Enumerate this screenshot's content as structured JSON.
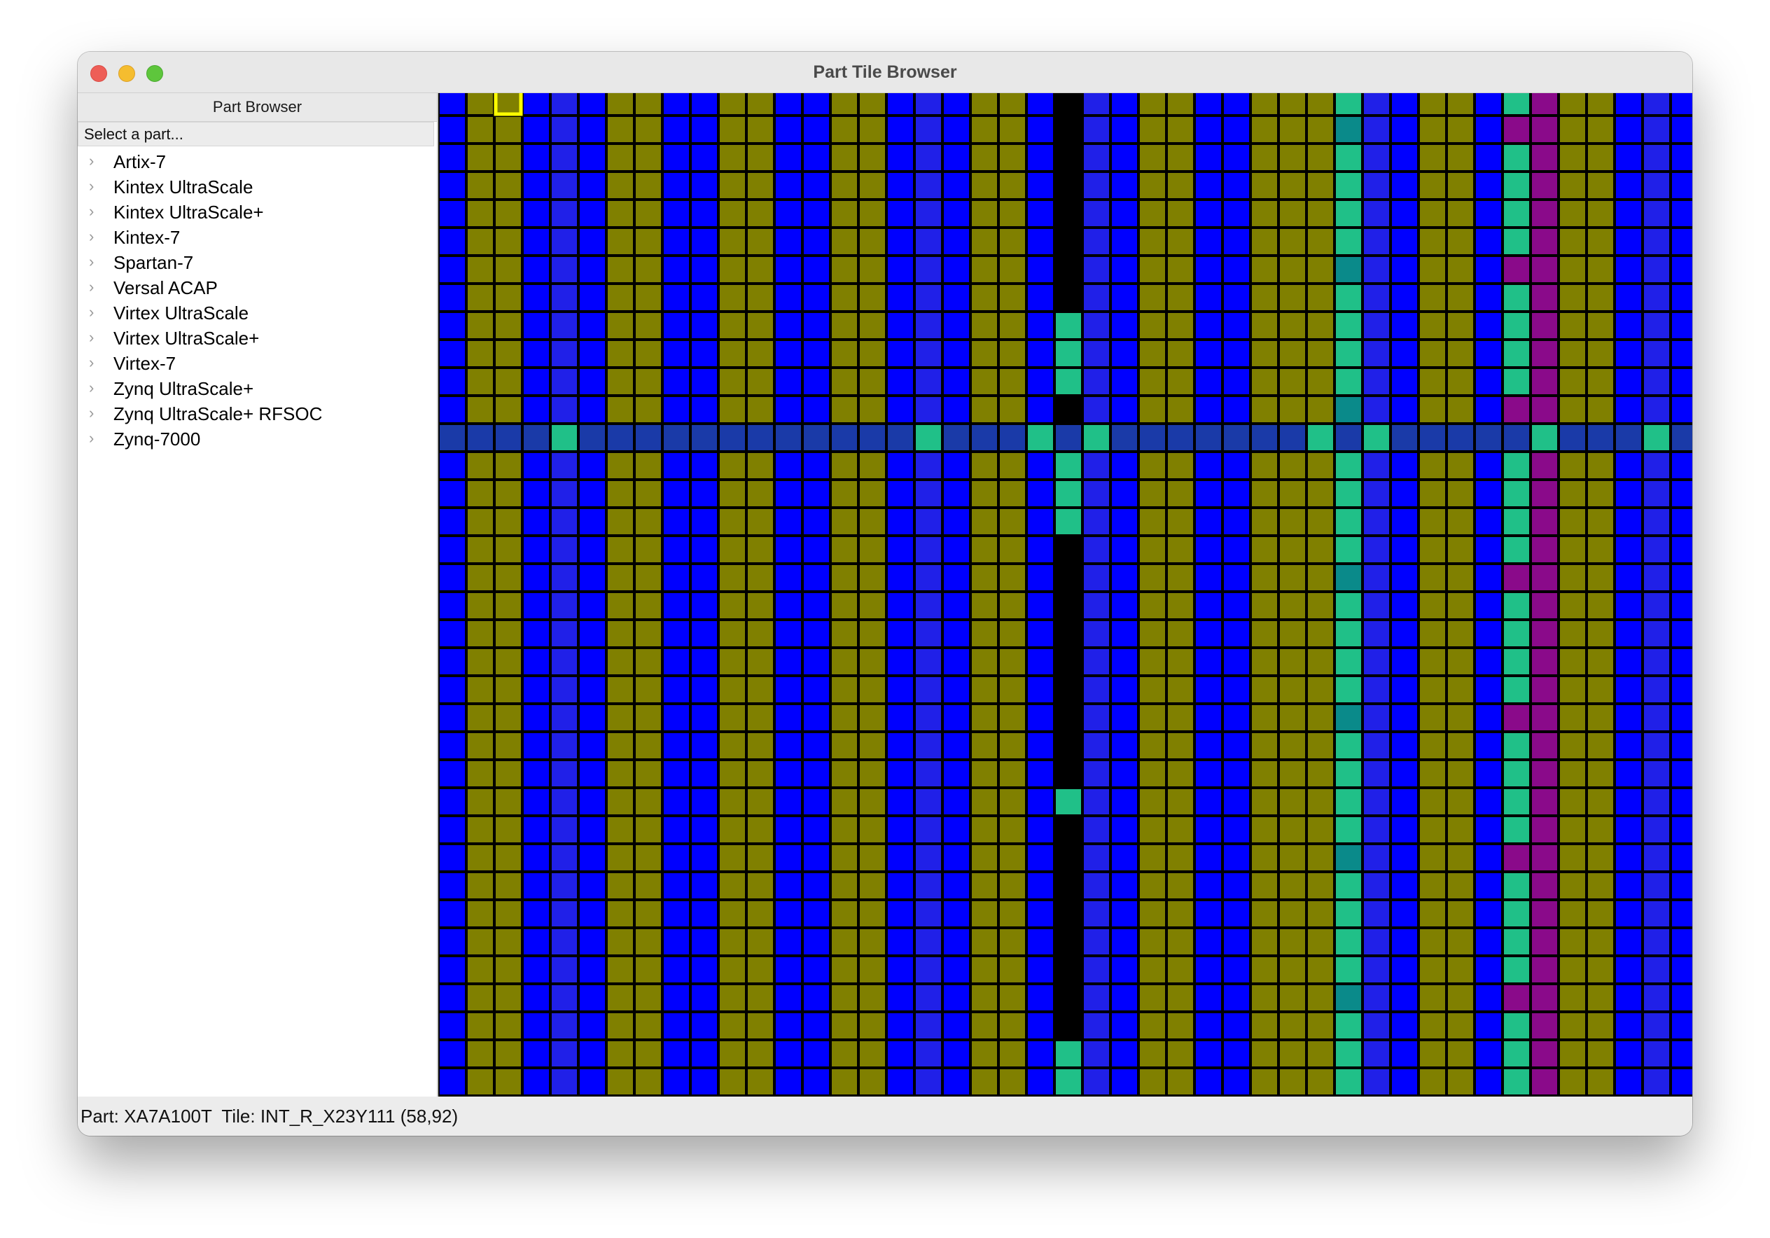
{
  "window": {
    "title": "Part Tile Browser"
  },
  "sidebar": {
    "header": "Part Browser",
    "placeholder": "Select a part...",
    "items": [
      {
        "label": "Artix-7"
      },
      {
        "label": "Kintex UltraScale"
      },
      {
        "label": "Kintex UltraScale+"
      },
      {
        "label": "Kintex-7"
      },
      {
        "label": "Spartan-7"
      },
      {
        "label": "Versal ACAP"
      },
      {
        "label": "Virtex UltraScale"
      },
      {
        "label": "Virtex UltraScale+"
      },
      {
        "label": "Virtex-7"
      },
      {
        "label": "Zynq UltraScale+"
      },
      {
        "label": "Zynq UltraScale+ RFSOC"
      },
      {
        "label": "Zynq-7000"
      }
    ]
  },
  "status": {
    "part_label": "Part:",
    "part_value": "XA7A100T",
    "tile_label": "Tile:",
    "tile_value": "INT_R_X23Y111 (58,92)"
  },
  "tiles": {
    "colors": {
      "olive": "#808000",
      "blue": "#0000ff",
      "violet": "#2020e8",
      "black": "#000000",
      "green": "#20c088",
      "teal": "#0a8a8a",
      "purple": "#8a0a8a",
      "hrow": "#1a3aa8",
      "selected": "#ffff00"
    },
    "columns": [
      "blue",
      "olive",
      "olive",
      "blue",
      "violet",
      "blue",
      "olive",
      "olive",
      "blue",
      "blue",
      "olive",
      "olive",
      "blue",
      "blue",
      "olive",
      "olive",
      "blue",
      "violet",
      "blue",
      "olive",
      "olive",
      "blue",
      "black",
      "violet",
      "blue",
      "olive",
      "olive",
      "blue",
      "blue",
      "olive",
      "olive",
      "olive",
      "green",
      "violet",
      "blue",
      "olive",
      "olive",
      "blue",
      "green",
      "purple",
      "olive",
      "olive",
      "blue",
      "violet",
      "blue"
    ],
    "hrow_index": 12,
    "hrow_green_columns": [
      4,
      17,
      21,
      23,
      31,
      33,
      39,
      43
    ],
    "black_green_rows": [
      8,
      9,
      10,
      13,
      14,
      15,
      25,
      34,
      35
    ],
    "teal_rows": [
      1,
      6,
      11,
      17,
      22,
      27,
      32
    ],
    "purple_green_rows": [
      1,
      6,
      11,
      17,
      22,
      27,
      32
    ],
    "selected_tile": {
      "col": 2,
      "row": 0
    }
  }
}
